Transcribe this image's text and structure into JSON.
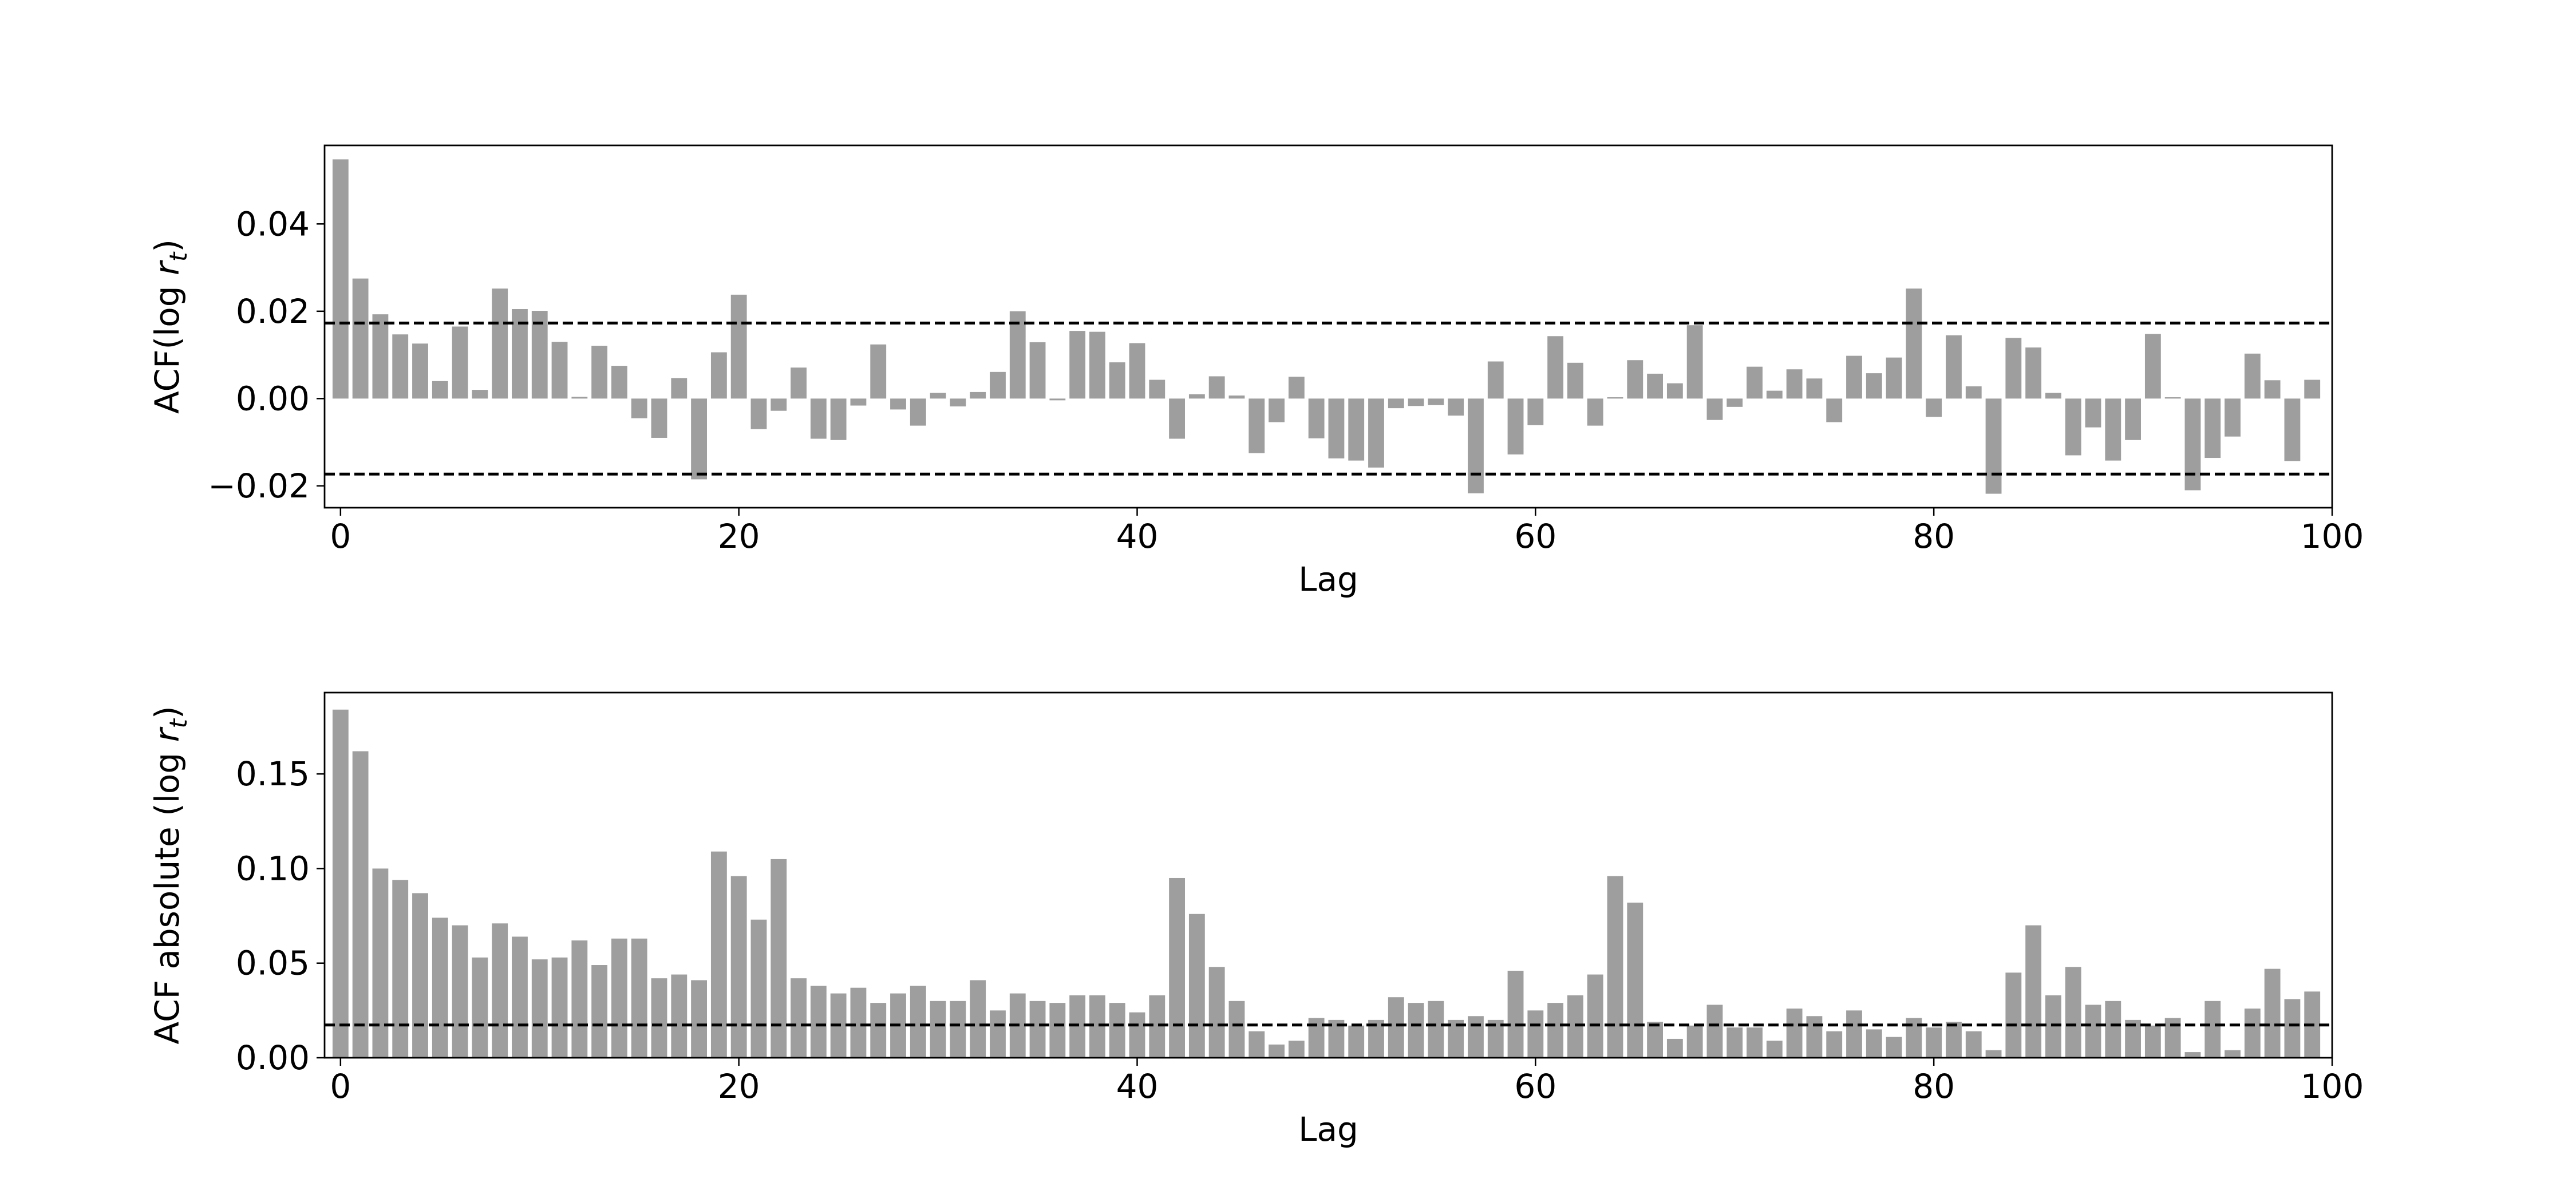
{
  "chart_data": [
    {
      "type": "bar",
      "xlabel": "Lag",
      "ylabel": {
        "prefix": "ACF(log ",
        "var": "r",
        "sub": "t",
        "suffix": ")"
      },
      "xlim": [
        -0.8,
        100
      ],
      "ylim": [
        -0.025,
        0.058
      ],
      "xticks": [
        0,
        20,
        40,
        60,
        80,
        100
      ],
      "yticks": [
        -0.02,
        0.0,
        0.02,
        0.04
      ],
      "ytick_labels": [
        "−0.02",
        "0.00",
        "0.02",
        "0.04"
      ],
      "bar_color": "#9e9e9e",
      "confidence_band": [
        0.0173,
        -0.0173
      ],
      "grid": false,
      "x": [
        0,
        1,
        2,
        3,
        4,
        5,
        6,
        7,
        8,
        9,
        10,
        11,
        12,
        13,
        14,
        15,
        16,
        17,
        18,
        19,
        20,
        21,
        22,
        23,
        24,
        25,
        26,
        27,
        28,
        29,
        30,
        31,
        32,
        33,
        34,
        35,
        36,
        37,
        38,
        39,
        40,
        41,
        42,
        43,
        44,
        45,
        46,
        47,
        48,
        49,
        50,
        51,
        52,
        53,
        54,
        55,
        56,
        57,
        58,
        59,
        60,
        61,
        62,
        63,
        64,
        65,
        66,
        67,
        68,
        69,
        70,
        71,
        72,
        73,
        74,
        75,
        76,
        77,
        78,
        79,
        80,
        81,
        82,
        83,
        84,
        85,
        86,
        87,
        88,
        89,
        90,
        91,
        92,
        93,
        94,
        95,
        96,
        97,
        98,
        99
      ],
      "values": [
        0.0548,
        0.0275,
        0.0193,
        0.0147,
        0.0126,
        0.004,
        0.0165,
        0.002,
        0.0252,
        0.0205,
        0.0201,
        0.013,
        0.0004,
        0.0121,
        0.0075,
        -0.0045,
        -0.009,
        0.0047,
        -0.0185,
        0.0106,
        0.0238,
        -0.007,
        -0.0028,
        0.0071,
        -0.0092,
        -0.0095,
        -0.0016,
        0.0124,
        -0.0025,
        -0.0062,
        0.0013,
        -0.0018,
        0.0015,
        0.0061,
        0.02,
        0.0129,
        -0.0004,
        0.0155,
        0.0153,
        0.0083,
        0.0127,
        0.0043,
        -0.0092,
        0.001,
        0.0051,
        0.0007,
        -0.0125,
        -0.0054,
        0.005,
        -0.0091,
        -0.0137,
        -0.0142,
        -0.0158,
        -0.0022,
        -0.0017,
        -0.0015,
        -0.0039,
        -0.0217,
        0.0085,
        -0.0128,
        -0.0061,
        0.0143,
        0.0082,
        -0.0062,
        0.0003,
        0.0088,
        0.0057,
        0.0035,
        0.0168,
        -0.0049,
        -0.0019,
        0.0073,
        0.0018,
        0.0067,
        0.0046,
        -0.0054,
        0.0098,
        0.0058,
        0.0094,
        0.0252,
        -0.0042,
        0.0145,
        0.0028,
        -0.0218,
        0.0139,
        0.0117,
        0.0013,
        -0.013,
        -0.0066,
        -0.0142,
        -0.0095,
        0.0148,
        0.0003,
        -0.021,
        -0.0136,
        -0.0087,
        0.0103,
        0.0042,
        -0.0143,
        0.0043
      ]
    },
    {
      "type": "bar",
      "xlabel": "Lag",
      "ylabel": {
        "prefix": "ACF absolute (log ",
        "var": "r",
        "sub": "t",
        "suffix": ")"
      },
      "xlim": [
        -0.8,
        100
      ],
      "ylim": [
        0,
        0.193
      ],
      "xticks": [
        0,
        20,
        40,
        60,
        80,
        100
      ],
      "yticks": [
        0.0,
        0.05,
        0.1,
        0.15
      ],
      "ytick_labels": [
        "0.00",
        "0.05",
        "0.10",
        "0.15"
      ],
      "bar_color": "#9e9e9e",
      "confidence_band": [
        0.0173
      ],
      "grid": false,
      "x": [
        0,
        1,
        2,
        3,
        4,
        5,
        6,
        7,
        8,
        9,
        10,
        11,
        12,
        13,
        14,
        15,
        16,
        17,
        18,
        19,
        20,
        21,
        22,
        23,
        24,
        25,
        26,
        27,
        28,
        29,
        30,
        31,
        32,
        33,
        34,
        35,
        36,
        37,
        38,
        39,
        40,
        41,
        42,
        43,
        44,
        45,
        46,
        47,
        48,
        49,
        50,
        51,
        52,
        53,
        54,
        55,
        56,
        57,
        58,
        59,
        60,
        61,
        62,
        63,
        64,
        65,
        66,
        67,
        68,
        69,
        70,
        71,
        72,
        73,
        74,
        75,
        76,
        77,
        78,
        79,
        80,
        81,
        82,
        83,
        84,
        85,
        86,
        87,
        88,
        89,
        90,
        91,
        92,
        93,
        94,
        95,
        96,
        97,
        98,
        99
      ],
      "values": [
        0.184,
        0.162,
        0.1,
        0.094,
        0.087,
        0.074,
        0.07,
        0.053,
        0.071,
        0.064,
        0.052,
        0.053,
        0.062,
        0.049,
        0.063,
        0.063,
        0.042,
        0.044,
        0.041,
        0.109,
        0.096,
        0.073,
        0.105,
        0.042,
        0.038,
        0.034,
        0.037,
        0.029,
        0.034,
        0.038,
        0.03,
        0.03,
        0.041,
        0.025,
        0.034,
        0.03,
        0.029,
        0.033,
        0.033,
        0.029,
        0.024,
        0.033,
        0.095,
        0.076,
        0.048,
        0.03,
        0.014,
        0.007,
        0.009,
        0.021,
        0.02,
        0.017,
        0.02,
        0.032,
        0.029,
        0.03,
        0.02,
        0.022,
        0.02,
        0.046,
        0.025,
        0.029,
        0.033,
        0.044,
        0.096,
        0.082,
        0.019,
        0.01,
        0.017,
        0.028,
        0.016,
        0.016,
        0.009,
        0.026,
        0.022,
        0.014,
        0.025,
        0.015,
        0.011,
        0.021,
        0.016,
        0.019,
        0.014,
        0.004,
        0.045,
        0.07,
        0.033,
        0.048,
        0.028,
        0.03,
        0.02,
        0.017,
        0.021,
        0.003,
        0.03,
        0.004,
        0.026,
        0.047,
        0.031,
        0.035
      ]
    }
  ]
}
